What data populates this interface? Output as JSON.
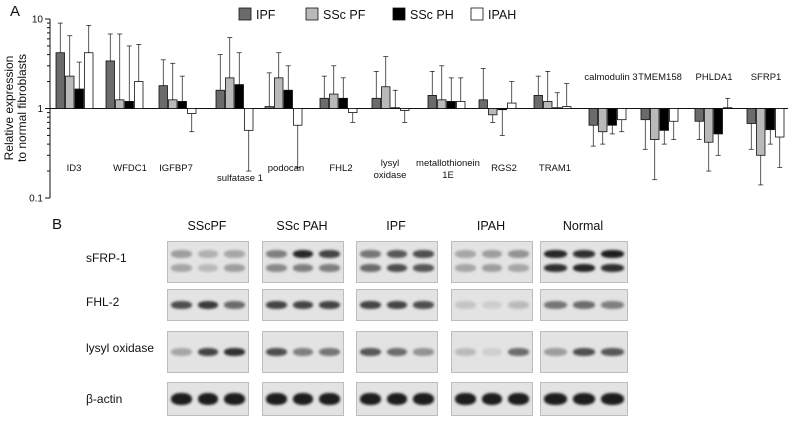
{
  "panel_a": {
    "letter": "A"
  },
  "panel_b": {
    "letter": "B"
  },
  "colors": {
    "IPF": "#6b6b6b",
    "SSc PF": "#b9b9b9",
    "SSc PH": "#000000",
    "IPAH": "#ffffff"
  },
  "chart_data": {
    "type": "bar",
    "yscale": "log",
    "ylim": [
      0.1,
      10
    ],
    "yticks": [
      "0.1",
      "1",
      "10"
    ],
    "ylabel": "Relative expression\nto normal fibroblasts",
    "xlabel": "",
    "title": "",
    "grid": false,
    "legend_position": "top",
    "categories": [
      "ID3",
      "WFDC1",
      "IGFBP7",
      "sulfatase 1",
      "podocan",
      "FHL2",
      "lysyl\noxidase",
      "metallothionein\n1E",
      "RGS2",
      "TRAM1",
      "calmodulin 3",
      "TMEM158",
      "PHLDA1",
      "SFRP1"
    ],
    "series": [
      {
        "name": "IPF",
        "values": [
          4.2,
          3.4,
          1.8,
          1.6,
          1.05,
          1.3,
          1.3,
          1.4,
          1.25,
          1.4,
          0.65,
          0.75,
          0.72,
          0.68
        ]
      },
      {
        "name": "SSc PF",
        "values": [
          2.3,
          1.25,
          1.25,
          2.2,
          2.2,
          1.45,
          1.75,
          1.25,
          0.85,
          1.2,
          0.55,
          0.45,
          0.42,
          0.3
        ]
      },
      {
        "name": "SSc PH",
        "values": [
          1.65,
          1.2,
          1.2,
          1.85,
          1.6,
          1.3,
          1.02,
          1.2,
          0.97,
          1.02,
          0.65,
          0.57,
          0.52,
          0.58
        ]
      },
      {
        "name": "IPAH",
        "values": [
          4.2,
          2.0,
          0.88,
          0.57,
          0.65,
          0.9,
          0.95,
          1.2,
          1.15,
          1.05,
          0.75,
          0.72,
          1.02,
          0.48
        ]
      }
    ],
    "errors": [
      [
        9.0,
        6.8,
        3.5,
        4.0,
        2.5,
        2.3,
        2.6,
        2.6,
        2.8,
        2.3,
        0.38,
        0.35,
        0.45,
        0.35
      ],
      [
        6.5,
        6.8,
        3.2,
        6.2,
        4.2,
        3.0,
        3.8,
        3.0,
        0.7,
        2.6,
        0.4,
        0.16,
        0.2,
        0.14
      ],
      [
        3.3,
        5.0,
        2.3,
        4.2,
        3.0,
        2.2,
        1.6,
        2.2,
        0.5,
        1.5,
        0.52,
        0.4,
        0.3,
        0.4
      ],
      [
        8.5,
        5.2,
        0.55,
        0.2,
        0.22,
        0.7,
        0.7,
        2.2,
        2.0,
        1.9,
        0.55,
        0.45,
        1.3,
        0.22
      ]
    ]
  },
  "western_blot": {
    "groups": [
      "SScPF",
      "SSc PAH",
      "IPF",
      "IPAH",
      "Normal"
    ],
    "proteins": [
      "sFRP-1",
      "FHL-2",
      "lysyl oxidase",
      "β-actin"
    ],
    "band_intensity": [
      [
        [
          0.35,
          0.25,
          0.3,
          0.3,
          0.2,
          0.35
        ],
        [
          0.5,
          0.95,
          0.8,
          0.45,
          0.5,
          0.5
        ],
        [
          0.55,
          0.7,
          0.75,
          0.6,
          0.75,
          0.7
        ],
        [
          0.3,
          0.35,
          0.4,
          0.3,
          0.35,
          0.3
        ],
        [
          0.95,
          0.9,
          1.0,
          0.9,
          0.95,
          0.9
        ]
      ],
      [
        [
          0.75,
          0.85,
          0.6
        ],
        [
          0.8,
          0.8,
          0.8
        ],
        [
          0.8,
          0.8,
          0.75
        ],
        [
          0.15,
          0.1,
          0.2
        ],
        [
          0.55,
          0.6,
          0.5
        ]
      ],
      [
        [
          0.3,
          0.8,
          0.9
        ],
        [
          0.75,
          0.5,
          0.55
        ],
        [
          0.7,
          0.6,
          0.4
        ],
        [
          0.2,
          0.1,
          0.6
        ],
        [
          0.35,
          0.75,
          0.7
        ]
      ],
      [
        [
          1.0,
          1.0,
          1.0
        ],
        [
          1.0,
          1.0,
          1.0
        ],
        [
          1.0,
          1.0,
          1.0
        ],
        [
          1.0,
          1.0,
          1.0
        ],
        [
          1.0,
          1.0,
          1.0
        ]
      ]
    ]
  }
}
